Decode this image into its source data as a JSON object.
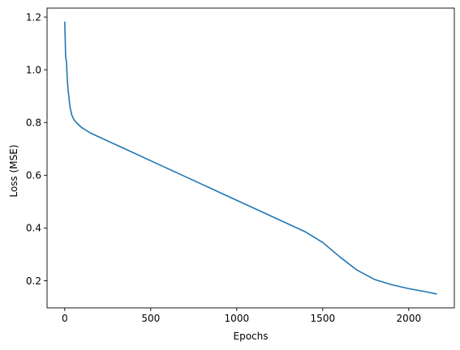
{
  "chart_data": {
    "type": "line",
    "title": "",
    "xlabel": "Epochs",
    "ylabel": "Loss (MSE)",
    "xlim": [
      -103,
      2265
    ],
    "ylim": [
      0.097,
      1.234
    ],
    "xticks": [
      0,
      500,
      1000,
      1500,
      2000
    ],
    "xtick_labels": [
      "0",
      "500",
      "1000",
      "1500",
      "2000"
    ],
    "yticks": [
      0.2,
      0.4,
      0.6,
      0.8,
      1.0,
      1.2
    ],
    "ytick_labels": [
      "0.2",
      "0.4",
      "0.6",
      "0.8",
      "1.0",
      "1.2"
    ],
    "grid": false,
    "legend": "none",
    "series": [
      {
        "color": "#1f77b4",
        "x": [
          0,
          5,
          10,
          15,
          20,
          25,
          30,
          40,
          50,
          60,
          75,
          100,
          150,
          200,
          300,
          400,
          500,
          600,
          700,
          800,
          900,
          1000,
          1100,
          1200,
          1300,
          1400,
          1500,
          1600,
          1700,
          1800,
          1900,
          2000,
          2100,
          2160
        ],
        "y": [
          1.18,
          1.05,
          1.03,
          0.96,
          0.92,
          0.89,
          0.86,
          0.83,
          0.815,
          0.805,
          0.795,
          0.78,
          0.76,
          0.745,
          0.715,
          0.685,
          0.655,
          0.625,
          0.595,
          0.565,
          0.535,
          0.505,
          0.475,
          0.445,
          0.415,
          0.385,
          0.345,
          0.29,
          0.24,
          0.205,
          0.185,
          0.17,
          0.158,
          0.15
        ]
      }
    ]
  }
}
